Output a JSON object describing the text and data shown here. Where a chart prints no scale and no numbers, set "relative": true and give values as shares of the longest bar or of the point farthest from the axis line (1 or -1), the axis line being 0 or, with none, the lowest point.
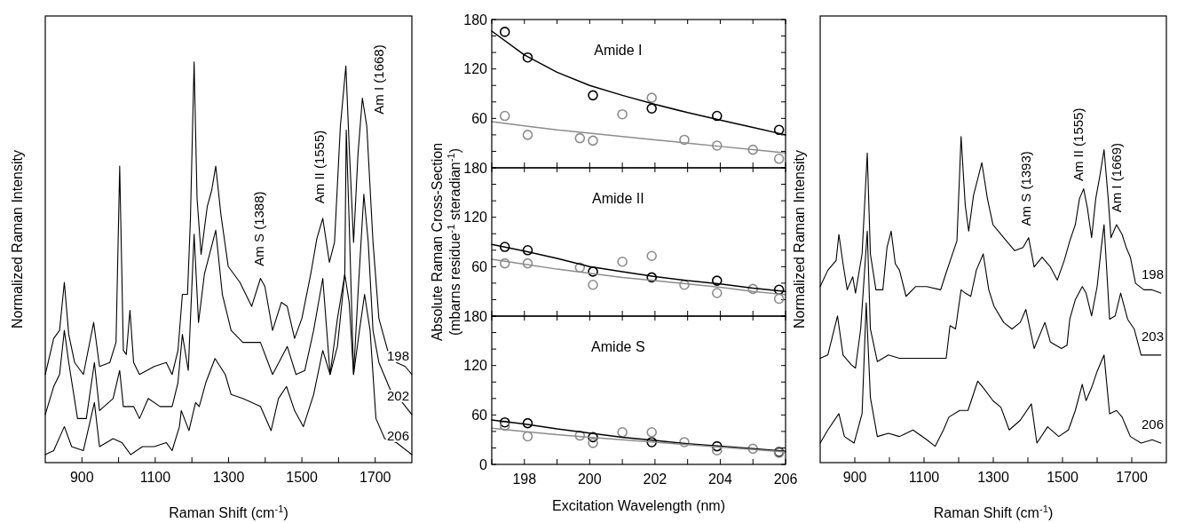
{
  "chart_data": [
    {
      "type": "line",
      "relative": true,
      "xlabel": "Raman Shift (cm$^{-1}$)",
      "ylabel": "Normalized Raman Intensity",
      "xlim": [
        800,
        1800
      ],
      "xticks": [
        900,
        {
          "value": 1000,
          "label": null
        },
        1100,
        {
          "value": 1200,
          "label": null
        },
        1300,
        {
          "value": 1400,
          "label": null
        },
        1500,
        {
          "value": 1600,
          "label": null
        },
        1700
      ],
      "tick_labels": "x",
      "annotations": [
        "Am S (1388)",
        "Am II (1555)",
        "Am I (1668)"
      ],
      "series": [
        {
          "name": "198",
          "color": "#000000",
          "x": [
            800,
            823,
            839,
            852,
            864,
            880,
            904,
            932,
            948,
            976,
            993,
            1003,
            1013,
            1021,
            1031,
            1041,
            1057,
            1097,
            1130,
            1146,
            1162,
            1174,
            1188,
            1196,
            1206,
            1214,
            1225,
            1242,
            1254,
            1265,
            1279,
            1299,
            1331,
            1363,
            1387,
            1399,
            1420,
            1444,
            1460,
            1480,
            1500,
            1524,
            1541,
            1557,
            1575,
            1589,
            1605,
            1620,
            1629,
            1641,
            1653,
            1665,
            1677,
            1694,
            1710,
            1734,
            1758,
            1782,
            1800
          ],
          "values": [
            0.22,
            0.31,
            0.33,
            0.45,
            0.32,
            0.25,
            0.22,
            0.35,
            0.24,
            0.25,
            0.3,
            0.74,
            0.28,
            0.27,
            0.38,
            0.25,
            0.22,
            0.24,
            0.25,
            0.22,
            0.28,
            0.42,
            0.42,
            0.61,
            1.0,
            0.66,
            0.52,
            0.64,
            0.68,
            0.74,
            0.62,
            0.49,
            0.45,
            0.39,
            0.46,
            0.44,
            0.33,
            0.4,
            0.39,
            0.31,
            0.36,
            0.47,
            0.56,
            0.61,
            0.5,
            0.55,
            0.84,
            0.99,
            0.79,
            0.55,
            0.77,
            0.91,
            0.84,
            0.55,
            0.36,
            0.28,
            0.25,
            0.24,
            0.22
          ]
        },
        {
          "name": "202",
          "color": "#000000",
          "x": [
            800,
            823,
            839,
            852,
            864,
            888,
            912,
            934,
            948,
            985,
            1003,
            1013,
            1041,
            1057,
            1081,
            1113,
            1146,
            1162,
            1174,
            1190,
            1206,
            1218,
            1234,
            1265,
            1283,
            1307,
            1339,
            1371,
            1387,
            1420,
            1460,
            1484,
            1508,
            1532,
            1557,
            1577,
            1597,
            1617,
            1621,
            1629,
            1641,
            1653,
            1669,
            1681,
            1694,
            1710,
            1742,
            1774,
            1800
          ],
          "values": [
            0.12,
            0.19,
            0.22,
            0.33,
            0.25,
            0.11,
            0.11,
            0.25,
            0.13,
            0.16,
            0.23,
            0.14,
            0.14,
            0.11,
            0.16,
            0.14,
            0.14,
            0.2,
            0.32,
            0.23,
            0.57,
            0.35,
            0.47,
            0.58,
            0.42,
            0.33,
            0.3,
            0.3,
            0.3,
            0.22,
            0.29,
            0.22,
            0.23,
            0.33,
            0.46,
            0.22,
            0.36,
            0.47,
            0.83,
            0.6,
            0.22,
            0.42,
            0.67,
            0.55,
            0.33,
            0.25,
            0.18,
            0.15,
            0.12
          ]
        },
        {
          "name": "206",
          "color": "#000000",
          "x": [
            800,
            823,
            852,
            872,
            904,
            934,
            948,
            985,
            1009,
            1033,
            1065,
            1097,
            1130,
            1146,
            1166,
            1171,
            1192,
            1210,
            1220,
            1238,
            1263,
            1291,
            1307,
            1339,
            1387,
            1416,
            1436,
            1458,
            1480,
            1504,
            1532,
            1557,
            1577,
            1597,
            1617,
            1629,
            1641,
            1657,
            1671,
            1686,
            1702,
            1726,
            1758,
            1800
          ],
          "values": [
            0.02,
            0.03,
            0.09,
            0.04,
            0.03,
            0.15,
            0.04,
            0.06,
            0.05,
            0.02,
            0.04,
            0.04,
            0.05,
            0.03,
            0.09,
            0.13,
            0.08,
            0.15,
            0.14,
            0.2,
            0.26,
            0.22,
            0.17,
            0.16,
            0.14,
            0.08,
            0.16,
            0.19,
            0.13,
            0.09,
            0.17,
            0.28,
            0.22,
            0.29,
            0.47,
            0.4,
            0.22,
            0.33,
            0.42,
            0.33,
            0.11,
            0.06,
            0.05,
            0.02
          ]
        }
      ]
    },
    {
      "type": "scatter",
      "title": "Amide I",
      "xlim": [
        197,
        206
      ],
      "ylim": [
        0,
        180
      ],
      "marker": "circle",
      "tick_labels": "y",
      "xticks": [
        {
          "value": 197,
          "label": null
        },
        {
          "value": 198,
          "label": null
        },
        {
          "value": 199,
          "label": null
        },
        {
          "value": 200,
          "label": null
        },
        {
          "value": 201,
          "label": null
        },
        {
          "value": 202,
          "label": null
        },
        {
          "value": 203,
          "label": null
        },
        {
          "value": 204,
          "label": null
        },
        {
          "value": 205,
          "label": null
        },
        {
          "value": 206,
          "label": null
        }
      ],
      "yticks": [
        {
          "value": 0,
          "label": null
        },
        {
          "value": 20,
          "label": null
        },
        {
          "value": 40,
          "label": null
        },
        60,
        {
          "value": 80,
          "label": null
        },
        {
          "value": 100,
          "label": null
        },
        120,
        {
          "value": 140,
          "label": null
        },
        {
          "value": 160,
          "label": null
        },
        180
      ],
      "series": [
        {
          "color": "#000000",
          "x": [
            197.4,
            198.1,
            200.1,
            201.9,
            203.9,
            205.8
          ],
          "values": [
            165,
            134,
            88,
            72,
            63,
            46
          ]
        },
        {
          "color": "#8c8c8c",
          "x": [
            197.4,
            198.1,
            199.7,
            200.1,
            201.0,
            201.9,
            202.9,
            203.9,
            205.0,
            205.8
          ],
          "values": [
            63,
            40,
            36,
            33,
            65,
            85,
            34,
            27,
            22,
            11
          ]
        },
        {
          "type": "line",
          "marker": "none",
          "color": "#000000",
          "x": [
            197,
            198,
            199,
            200,
            201,
            202,
            203,
            204,
            205,
            206
          ],
          "values": [
            166,
            137,
            116,
            100,
            88,
            77,
            67,
            58,
            49,
            40
          ]
        },
        {
          "type": "line",
          "marker": "none",
          "color": "#8c8c8c",
          "x": [
            197,
            198,
            199,
            200,
            201,
            202,
            203,
            204,
            205,
            206
          ],
          "values": [
            56,
            51,
            46,
            42,
            38,
            34,
            30,
            26,
            22,
            18
          ]
        }
      ]
    },
    {
      "type": "scatter",
      "title": "Amide II",
      "ylabel": "Absolute Raman Cross-Section\n(mbarns residue$^{-1}$ steradian$^{-1}$)",
      "xlim": [
        197,
        206
      ],
      "ylim": [
        0,
        180
      ],
      "marker": "circle",
      "tick_labels": "y",
      "xticks": [
        {
          "value": 197,
          "label": null
        },
        {
          "value": 198,
          "label": null
        },
        {
          "value": 199,
          "label": null
        },
        {
          "value": 200,
          "label": null
        },
        {
          "value": 201,
          "label": null
        },
        {
          "value": 202,
          "label": null
        },
        {
          "value": 203,
          "label": null
        },
        {
          "value": 204,
          "label": null
        },
        {
          "value": 205,
          "label": null
        },
        {
          "value": 206,
          "label": null
        }
      ],
      "yticks": [
        {
          "value": 0,
          "label": null
        },
        {
          "value": 20,
          "label": null
        },
        {
          "value": 40,
          "label": null
        },
        60,
        {
          "value": 80,
          "label": null
        },
        {
          "value": 100,
          "label": null
        },
        120,
        {
          "value": 140,
          "label": null
        },
        {
          "value": 160,
          "label": null
        },
        180
      ],
      "series": [
        {
          "color": "#000000",
          "x": [
            197.4,
            198.1,
            200.1,
            201.9,
            203.9,
            205.8
          ],
          "values": [
            84,
            80,
            54,
            47,
            43,
            32
          ]
        },
        {
          "color": "#8c8c8c",
          "x": [
            197.4,
            198.1,
            199.7,
            200.1,
            201.0,
            201.9,
            202.9,
            203.9,
            205.0,
            205.8
          ],
          "values": [
            64,
            64,
            59,
            38,
            66,
            73,
            38,
            28,
            33,
            21
          ]
        },
        {
          "type": "line",
          "marker": "none",
          "color": "#000000",
          "x": [
            197,
            198,
            199,
            200,
            201,
            202,
            203,
            204,
            205,
            206
          ],
          "values": [
            87,
            79,
            70,
            60,
            54,
            48,
            43,
            39,
            34,
            30
          ]
        },
        {
          "type": "line",
          "marker": "none",
          "color": "#8c8c8c",
          "x": [
            197,
            198,
            199,
            200,
            201,
            202,
            203,
            204,
            205,
            206
          ],
          "values": [
            69,
            63,
            57,
            52,
            47,
            43,
            39,
            35,
            30,
            26
          ]
        }
      ]
    },
    {
      "type": "scatter",
      "title": "Amide S",
      "xlabel": "Excitation Wavelength (nm)",
      "xlim": [
        197,
        206
      ],
      "ylim": [
        0,
        180
      ],
      "marker": "circle",
      "xticks": [
        {
          "value": 197,
          "label": null
        },
        198,
        {
          "value": 199,
          "label": null
        },
        200,
        {
          "value": 201,
          "label": null
        },
        202,
        {
          "value": 203,
          "label": null
        },
        204,
        {
          "value": 205,
          "label": null
        },
        206
      ],
      "yticks": [
        0,
        {
          "value": 20,
          "label": null
        },
        {
          "value": 40,
          "label": null
        },
        60,
        {
          "value": 80,
          "label": null
        },
        {
          "value": 100,
          "label": null
        },
        120,
        {
          "value": 140,
          "label": null
        },
        {
          "value": 160,
          "label": null
        },
        180
      ],
      "series": [
        {
          "color": "#000000",
          "x": [
            197.4,
            198.1,
            200.1,
            201.9,
            203.9,
            205.8
          ],
          "values": [
            51,
            50,
            33,
            27,
            22,
            15
          ]
        },
        {
          "color": "#8c8c8c",
          "x": [
            197.4,
            198.1,
            199.7,
            200.1,
            201.0,
            201.9,
            202.9,
            203.9,
            205.0,
            205.8
          ],
          "values": [
            47,
            34,
            35,
            26,
            39,
            39,
            27,
            17,
            19,
            14
          ]
        },
        {
          "type": "line",
          "marker": "none",
          "color": "#000000",
          "x": [
            197,
            198,
            199,
            200,
            201,
            202,
            203,
            204,
            205,
            206
          ],
          "values": [
            54,
            49,
            43,
            38,
            33,
            29,
            25,
            22,
            19,
            16
          ]
        },
        {
          "type": "line",
          "marker": "none",
          "color": "#8c8c8c",
          "x": [
            197,
            198,
            199,
            200,
            201,
            202,
            203,
            204,
            205,
            206
          ],
          "values": [
            44,
            40,
            36,
            33,
            30,
            27,
            24,
            21,
            18,
            15
          ]
        }
      ]
    },
    {
      "type": "line",
      "relative": true,
      "xlabel": "Raman Shift (cm$^{-1}$)",
      "ylabel": "Normalized Raman Intensity",
      "xlim": [
        800,
        1800
      ],
      "xticks": [
        900,
        {
          "value": 1000,
          "label": null
        },
        1100,
        {
          "value": 1200,
          "label": null
        },
        1300,
        {
          "value": 1400,
          "label": null
        },
        1500,
        {
          "value": 1600,
          "label": null
        },
        1700
      ],
      "tick_labels": "x",
      "annotations": [
        "Am S (1393)",
        "Am II (1555)",
        "Am I (1669)"
      ],
      "series": [
        {
          "name": "198",
          "color": "#000000",
          "x": [
            800,
            822,
            846,
            854,
            866,
            878,
            894,
            902,
            921,
            936,
            945,
            961,
            981,
            993,
            1005,
            1017,
            1029,
            1048,
            1076,
            1108,
            1148,
            1160,
            1179,
            1195,
            1207,
            1219,
            1229,
            1243,
            1255,
            1267,
            1283,
            1299,
            1330,
            1362,
            1386,
            1402,
            1418,
            1441,
            1465,
            1485,
            1505,
            1521,
            1537,
            1549,
            1561,
            1572,
            1584,
            1596,
            1608,
            1620,
            1632,
            1640,
            1656,
            1672,
            1684,
            1696,
            1711,
            1735,
            1759,
            1784
          ],
          "values": [
            0.54,
            0.59,
            0.62,
            0.7,
            0.61,
            0.53,
            0.57,
            0.52,
            0.64,
            0.95,
            0.64,
            0.53,
            0.53,
            0.66,
            0.71,
            0.61,
            0.59,
            0.51,
            0.54,
            0.54,
            0.53,
            0.57,
            0.63,
            0.68,
            1.0,
            0.79,
            0.71,
            0.82,
            0.87,
            0.92,
            0.81,
            0.73,
            0.69,
            0.65,
            0.66,
            0.69,
            0.6,
            0.63,
            0.6,
            0.56,
            0.62,
            0.68,
            0.73,
            0.81,
            0.84,
            0.78,
            0.69,
            0.81,
            0.88,
            0.96,
            0.81,
            0.69,
            0.73,
            0.7,
            0.66,
            0.63,
            0.55,
            0.53,
            0.53,
            0.52
          ]
        },
        {
          "name": "203",
          "color": "#000000",
          "x": [
            800,
            822,
            850,
            866,
            890,
            902,
            917,
            936,
            945,
            965,
            997,
            1029,
            1068,
            1108,
            1148,
            1164,
            1175,
            1191,
            1207,
            1219,
            1235,
            1251,
            1271,
            1287,
            1302,
            1330,
            1354,
            1378,
            1394,
            1418,
            1449,
            1465,
            1497,
            1513,
            1521,
            1537,
            1557,
            1568,
            1584,
            1600,
            1612,
            1620,
            1636,
            1652,
            1668,
            1688,
            1707,
            1727,
            1759,
            1784
          ],
          "values": [
            0.32,
            0.33,
            0.45,
            0.33,
            0.3,
            0.29,
            0.41,
            0.71,
            0.41,
            0.31,
            0.33,
            0.32,
            0.32,
            0.32,
            0.32,
            0.32,
            0.42,
            0.41,
            0.53,
            0.52,
            0.51,
            0.59,
            0.64,
            0.53,
            0.48,
            0.43,
            0.41,
            0.43,
            0.47,
            0.35,
            0.43,
            0.37,
            0.35,
            0.36,
            0.44,
            0.5,
            0.54,
            0.52,
            0.45,
            0.54,
            0.66,
            0.73,
            0.44,
            0.45,
            0.52,
            0.44,
            0.41,
            0.33,
            0.33,
            0.33
          ]
        },
        {
          "name": "206",
          "color": "#000000",
          "x": [
            800,
            822,
            854,
            870,
            898,
            921,
            933,
            945,
            965,
            997,
            1029,
            1068,
            1108,
            1132,
            1156,
            1172,
            1203,
            1227,
            1255,
            1271,
            1299,
            1322,
            1346,
            1378,
            1410,
            1426,
            1457,
            1489,
            1517,
            1537,
            1557,
            1568,
            1584,
            1600,
            1620,
            1636,
            1656,
            1672,
            1696,
            1727,
            1759,
            1784
          ],
          "values": [
            0.06,
            0.1,
            0.15,
            0.08,
            0.06,
            0.15,
            0.49,
            0.2,
            0.08,
            0.09,
            0.08,
            0.1,
            0.07,
            0.05,
            0.1,
            0.14,
            0.16,
            0.16,
            0.25,
            0.23,
            0.19,
            0.17,
            0.1,
            0.13,
            0.18,
            0.06,
            0.11,
            0.08,
            0.1,
            0.16,
            0.24,
            0.19,
            0.23,
            0.28,
            0.33,
            0.15,
            0.16,
            0.14,
            0.08,
            0.06,
            0.07,
            0.06
          ]
        }
      ]
    }
  ]
}
